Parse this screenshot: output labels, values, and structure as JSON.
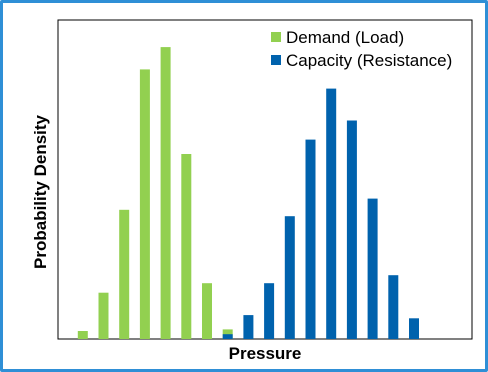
{
  "chart_data": {
    "type": "bar",
    "xlabel": "Pressure",
    "ylabel": "Probability Density",
    "grid": false,
    "legend_placement": "top-right",
    "series": [
      {
        "name": "Demand (Load)",
        "color": "#92d050",
        "x": [
          1,
          2,
          3,
          4,
          5,
          6,
          7,
          8
        ],
        "values": [
          2.5,
          14.5,
          40.5,
          84.5,
          91.5,
          58,
          17.5,
          3
        ]
      },
      {
        "name": "Capacity (Resistance)",
        "color": "#0062ad",
        "x": [
          8,
          9,
          10,
          11,
          12,
          13,
          14,
          15,
          16,
          17
        ],
        "values": [
          1.5,
          7.5,
          17.5,
          38.5,
          62.5,
          78.5,
          68.5,
          44,
          20,
          6.5
        ]
      }
    ],
    "xlim": [
      -0.2,
      19.8
    ],
    "ylim": [
      0,
      100
    ]
  }
}
